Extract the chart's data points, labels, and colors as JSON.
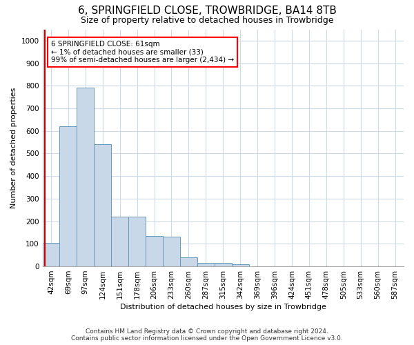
{
  "title": "6, SPRINGFIELD CLOSE, TROWBRIDGE, BA14 8TB",
  "subtitle": "Size of property relative to detached houses in Trowbridge",
  "xlabel": "Distribution of detached houses by size in Trowbridge",
  "ylabel": "Number of detached properties",
  "footer_line1": "Contains HM Land Registry data © Crown copyright and database right 2024.",
  "footer_line2": "Contains public sector information licensed under the Open Government Licence v3.0.",
  "bar_labels": [
    "42sqm",
    "69sqm",
    "97sqm",
    "124sqm",
    "151sqm",
    "178sqm",
    "206sqm",
    "233sqm",
    "260sqm",
    "287sqm",
    "315sqm",
    "342sqm",
    "369sqm",
    "396sqm",
    "424sqm",
    "451sqm",
    "478sqm",
    "505sqm",
    "533sqm",
    "560sqm",
    "587sqm"
  ],
  "bar_values": [
    103,
    621,
    793,
    541,
    220,
    219,
    135,
    133,
    41,
    16,
    14,
    10,
    0,
    0,
    0,
    0,
    0,
    0,
    0,
    0,
    0
  ],
  "bar_color": "#c8d8e8",
  "bar_edge_color": "#6699bb",
  "highlight_color": "#cc0000",
  "ylim": [
    0,
    1050
  ],
  "yticks": [
    0,
    100,
    200,
    300,
    400,
    500,
    600,
    700,
    800,
    900,
    1000
  ],
  "annotation_text": "6 SPRINGFIELD CLOSE: 61sqm\n← 1% of detached houses are smaller (33)\n99% of semi-detached houses are larger (2,434) →",
  "grid_color": "#ccd9e8",
  "background_color": "#ffffff",
  "title_fontsize": 11,
  "subtitle_fontsize": 9,
  "axis_label_fontsize": 8,
  "tick_fontsize": 7.5,
  "footer_fontsize": 6.5
}
